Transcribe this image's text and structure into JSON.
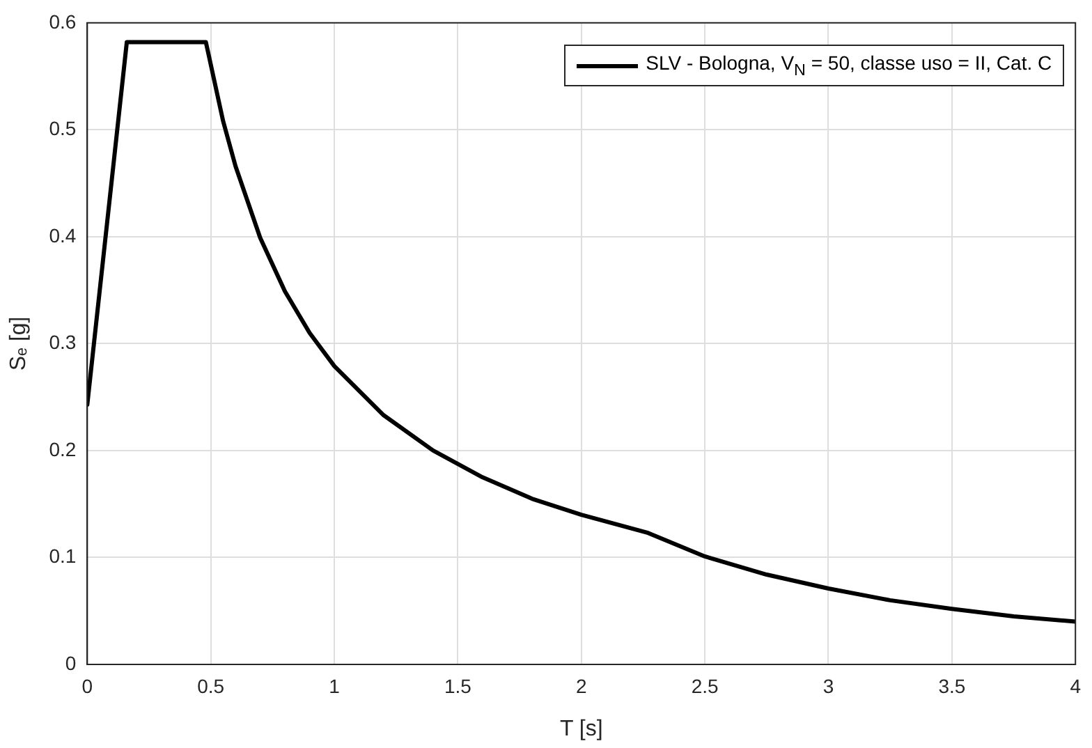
{
  "chart_data": {
    "type": "line",
    "xlabel": "T [s]",
    "ylabel": "Sₑ [g]",
    "xlim": [
      0,
      4
    ],
    "xticks": [
      0,
      0.5,
      1,
      1.5,
      2,
      2.5,
      3,
      3.5,
      4
    ],
    "ylim": [
      0,
      0.6
    ],
    "yticks": [
      0,
      0.1,
      0.2,
      0.3,
      0.4,
      0.5,
      0.6
    ],
    "grid": true,
    "legend": "top right",
    "marker": "none",
    "line_style": "solid",
    "series": [
      {
        "name": "SLV - Bologna, V$_{N}$ = 50, classe uso = II, Cat. C",
        "color": "#000000",
        "x": [
          0,
          0.16,
          0.48,
          0.55,
          0.6,
          0.7,
          0.8,
          0.9,
          1.0,
          1.2,
          1.4,
          1.6,
          1.8,
          2.0,
          2.27,
          2.5,
          2.75,
          3,
          3.25,
          3.5,
          3.75,
          4
        ],
        "values": [
          0.243,
          0.582,
          0.582,
          0.508,
          0.466,
          0.399,
          0.349,
          0.31,
          0.279,
          0.233,
          0.2,
          0.175,
          0.155,
          0.14,
          0.123,
          0.101,
          0.084,
          0.071,
          0.06,
          0.052,
          0.045,
          0.04
        ]
      }
    ]
  }
}
